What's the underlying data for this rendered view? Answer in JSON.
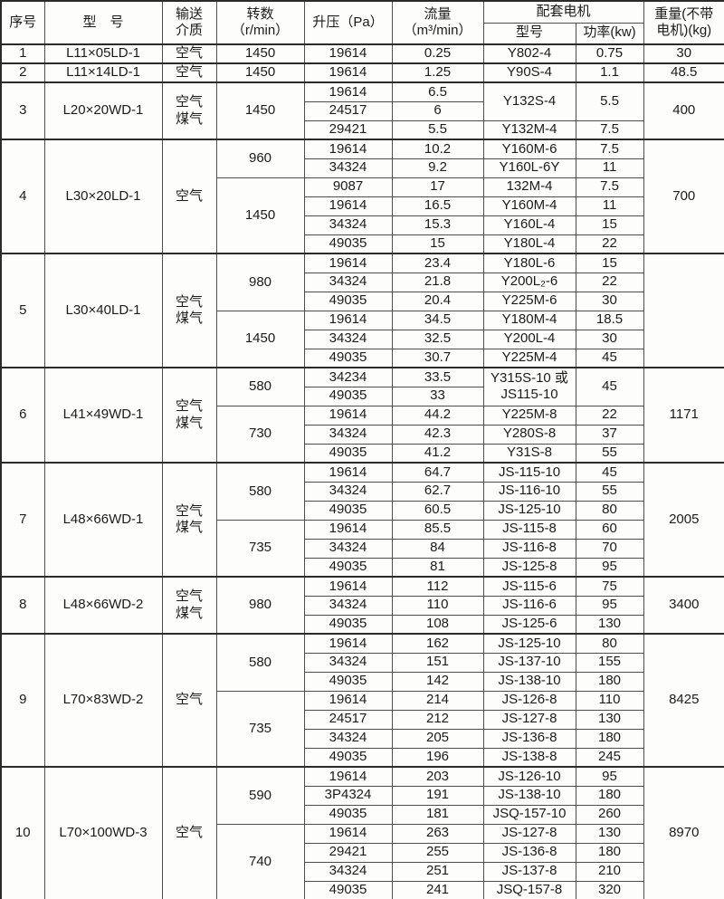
{
  "table": {
    "header": {
      "serial": "序号",
      "model": "型　号",
      "medium_lines": [
        "输送",
        "介质"
      ],
      "speed_lines": [
        "转数",
        "（r/min）"
      ],
      "pressure": "升压（Pa）",
      "flow_lines": [
        "流量",
        "（m³/min）"
      ],
      "motor_group": "配套电机",
      "motor_model": "型号",
      "motor_power": "功率(kw)",
      "weight_lines": [
        "重量(不带",
        "电机)(kg)"
      ]
    },
    "groups": [
      {
        "no": "1",
        "model": "L11×05LD-1",
        "medium_lines": [
          "空气"
        ],
        "weight": "30",
        "speeds": [
          {
            "rpm": "1450",
            "rows": [
              {
                "pressure": "19614",
                "flow": "0.25",
                "motor": "Y802-4",
                "power": "0.75"
              }
            ]
          }
        ]
      },
      {
        "no": "2",
        "model": "L11×14LD-1",
        "medium_lines": [
          "空气"
        ],
        "weight": "48.5",
        "speeds": [
          {
            "rpm": "1450",
            "rows": [
              {
                "pressure": "19614",
                "flow": "1.25",
                "motor": "Y90S-4",
                "power": "1.1"
              }
            ]
          }
        ]
      },
      {
        "no": "3",
        "model": "L20×20WD-1",
        "medium_lines": [
          "空气",
          "煤气"
        ],
        "weight": "400",
        "speeds": [
          {
            "rpm": "1450",
            "rows": [
              {
                "pressure": "19614",
                "flow": "6.5",
                "motor": "Y132S-4",
                "motor_span": 2,
                "power": "5.5",
                "power_span": 2
              },
              {
                "pressure": "24517",
                "flow": "6",
                "motor": null,
                "power": null
              },
              {
                "pressure": "29421",
                "flow": "5.5",
                "motor": "Y132M-4",
                "power": "7.5"
              }
            ]
          }
        ]
      },
      {
        "no": "4",
        "model": "L30×20LD-1",
        "medium_lines": [
          "空气"
        ],
        "weight": "700",
        "speeds": [
          {
            "rpm": "960",
            "rows": [
              {
                "pressure": "19614",
                "flow": "10.2",
                "motor": "Y160M-6",
                "power": "7.5"
              },
              {
                "pressure": "34324",
                "flow": "9.2",
                "motor": "Y160L-6Y",
                "power": "11"
              }
            ]
          },
          {
            "rpm": "1450",
            "rows": [
              {
                "pressure": "9087",
                "flow": "17",
                "motor": "132M-4",
                "power": "7.5"
              },
              {
                "pressure": "19614",
                "flow": "16.5",
                "motor": "Y160M-4",
                "power": "11"
              },
              {
                "pressure": "34324",
                "flow": "15.3",
                "motor": "Y160L-4",
                "power": "15"
              },
              {
                "pressure": "49035",
                "flow": "15",
                "motor": "Y180L-4",
                "power": "22"
              }
            ]
          }
        ]
      },
      {
        "no": "5",
        "model": "L30×40LD-1",
        "medium_lines": [
          "空气",
          "煤气"
        ],
        "weight": "",
        "speeds": [
          {
            "rpm": "980",
            "rows": [
              {
                "pressure": "19614",
                "flow": "23.4",
                "motor": "Y180L-6",
                "power": "15"
              },
              {
                "pressure": "34324",
                "flow": "21.8",
                "motor": "Y200L₂-6",
                "power": "22"
              },
              {
                "pressure": "49035",
                "flow": "20.4",
                "motor": "Y225M-6",
                "power": "30"
              }
            ]
          },
          {
            "rpm": "1450",
            "rows": [
              {
                "pressure": "19614",
                "flow": "34.5",
                "motor": "Y180M-4",
                "power": "18.5"
              },
              {
                "pressure": "34324",
                "flow": "32.5",
                "motor": "Y200L-4",
                "power": "30"
              },
              {
                "pressure": "49035",
                "flow": "30.7",
                "motor": "Y225M-4",
                "power": "45"
              }
            ]
          }
        ]
      },
      {
        "no": "6",
        "model": "L41×49WD-1",
        "medium_lines": [
          "空气",
          "煤气"
        ],
        "weight": "1171",
        "speeds": [
          {
            "rpm": "580",
            "rows": [
              {
                "pressure": "34234",
                "flow": "33.5",
                "motor": [
                  "Y315S-10 或",
                  "JS115-10"
                ],
                "motor_span": 2,
                "power": "45",
                "power_span": 2
              },
              {
                "pressure": "49035",
                "flow": "33",
                "motor": null,
                "power": null
              }
            ]
          },
          {
            "rpm": "730",
            "rows": [
              {
                "pressure": "19614",
                "flow": "44.2",
                "motor": "Y225M-8",
                "power": "22"
              },
              {
                "pressure": "34324",
                "flow": "42.3",
                "motor": "Y280S-8",
                "power": "37"
              },
              {
                "pressure": "49035",
                "flow": "41.2",
                "motor": "Y31S-8",
                "power": "55"
              }
            ]
          }
        ]
      },
      {
        "no": "7",
        "model": "L48×66WD-1",
        "medium_lines": [
          "空气",
          "煤气"
        ],
        "weight": "2005",
        "speeds": [
          {
            "rpm": "580",
            "rows": [
              {
                "pressure": "19614",
                "flow": "64.7",
                "motor": "JS-115-10",
                "power": "45"
              },
              {
                "pressure": "34324",
                "flow": "62.7",
                "motor": "JS-116-10",
                "power": "55"
              },
              {
                "pressure": "49035",
                "flow": "60.5",
                "motor": "JS-125-10",
                "power": "80"
              }
            ]
          },
          {
            "rpm": "735",
            "rows": [
              {
                "pressure": "19614",
                "flow": "85.5",
                "motor": "JS-115-8",
                "power": "60"
              },
              {
                "pressure": "34324",
                "flow": "84",
                "motor": "JS-116-8",
                "power": "70"
              },
              {
                "pressure": "49035",
                "flow": "81",
                "motor": "JS-125-8",
                "power": "95"
              }
            ]
          }
        ]
      },
      {
        "no": "8",
        "model": "L48×66WD-2",
        "medium_lines": [
          "空气",
          "煤气"
        ],
        "weight": "3400",
        "speeds": [
          {
            "rpm": "980",
            "rows": [
              {
                "pressure": "19614",
                "flow": "112",
                "motor": "JS-115-6",
                "power": "75"
              },
              {
                "pressure": "34324",
                "flow": "110",
                "motor": "JS-116-6",
                "power": "95"
              },
              {
                "pressure": "49035",
                "flow": "108",
                "motor": "JS-125-6",
                "power": "130"
              }
            ]
          }
        ]
      },
      {
        "no": "9",
        "model": "L70×83WD-2",
        "medium_lines": [
          "空气"
        ],
        "weight": "8425",
        "speeds": [
          {
            "rpm": "580",
            "rows": [
              {
                "pressure": "19614",
                "flow": "162",
                "motor": "JS-125-10",
                "power": "80"
              },
              {
                "pressure": "34324",
                "flow": "151",
                "motor": "JS-137-10",
                "power": "155"
              },
              {
                "pressure": "49035",
                "flow": "142",
                "motor": "JS-138-10",
                "power": "180"
              }
            ]
          },
          {
            "rpm": "735",
            "rows": [
              {
                "pressure": "19614",
                "flow": "214",
                "motor": "JS-126-8",
                "power": "110"
              },
              {
                "pressure": "24517",
                "flow": "212",
                "motor": "JS-127-8",
                "power": "130"
              },
              {
                "pressure": "34324",
                "flow": "205",
                "motor": "JS-136-8",
                "power": "180"
              },
              {
                "pressure": "49035",
                "flow": "196",
                "motor": "JS-138-8",
                "power": "245"
              }
            ]
          }
        ]
      },
      {
        "no": "10",
        "model": "L70×100WD-3",
        "medium_lines": [
          "空气"
        ],
        "weight": "8970",
        "speeds": [
          {
            "rpm": "590",
            "rows": [
              {
                "pressure": "19614",
                "flow": "203",
                "motor": "JS-126-10",
                "power": "95"
              },
              {
                "pressure": "3P4324",
                "flow": "191",
                "motor": "JS-138-10",
                "power": "180"
              },
              {
                "pressure": "49035",
                "flow": "181",
                "motor": "JSQ-157-10",
                "power": "260"
              }
            ]
          },
          {
            "rpm": "740",
            "rows": [
              {
                "pressure": "19614",
                "flow": "263",
                "motor": "JS-127-8",
                "power": "130"
              },
              {
                "pressure": "29421",
                "flow": "255",
                "motor": "JS-136-8",
                "power": "180"
              },
              {
                "pressure": "34324",
                "flow": "251",
                "motor": "JS-137-8",
                "power": "210"
              },
              {
                "pressure": "49035",
                "flow": "241",
                "motor": "JSQ-157-8",
                "power": "320"
              }
            ]
          }
        ]
      }
    ]
  }
}
